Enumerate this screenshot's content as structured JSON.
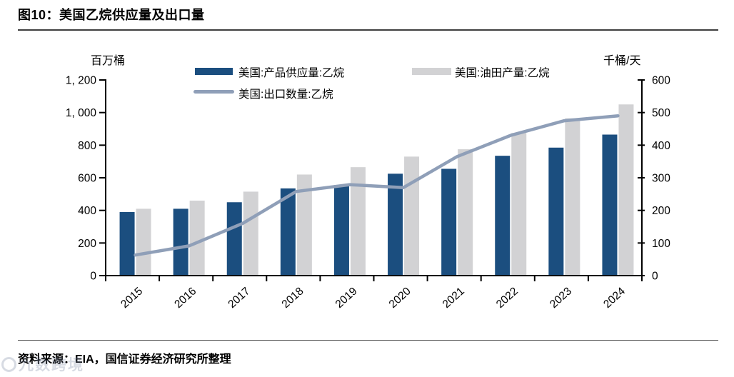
{
  "header": {
    "title": "图10：美国乙烷供应量及出口量"
  },
  "axis_units": {
    "left": "百万桶",
    "right": "千桶/天"
  },
  "footer": {
    "source": "资料来源：EIA，国信证券经济研究所整理"
  },
  "watermark": {
    "text": "九数跨境"
  },
  "colors": {
    "bar_supply": "#1b4e7f",
    "bar_field": "#d2d2d4",
    "line_export": "#8f9fb8",
    "axis": "#000000"
  },
  "chart_data": {
    "type": "bar",
    "subtype": "grouped-bars-with-line",
    "title": "美国乙烷供应量及出口量",
    "categories": [
      "2015",
      "2016",
      "2017",
      "2018",
      "2019",
      "2020",
      "2021",
      "2022",
      "2023",
      "2024"
    ],
    "series": [
      {
        "name": "美国:产品供应量:乙烷",
        "type": "bar",
        "axis": "left",
        "color": "#1b4e7f",
        "values": [
          390,
          410,
          450,
          535,
          555,
          625,
          655,
          735,
          785,
          865
        ]
      },
      {
        "name": "美国:油田产量:乙烷",
        "type": "bar",
        "axis": "left",
        "color": "#d2d2d4",
        "values": [
          410,
          460,
          515,
          620,
          665,
          730,
          775,
          875,
          965,
          1050
        ]
      },
      {
        "name": "美国:出口数量:乙烷",
        "type": "line",
        "axis": "right",
        "color": "#8f9fb8",
        "values": [
          63,
          91,
          160,
          258,
          279,
          270,
          365,
          430,
          475,
          490
        ]
      }
    ],
    "left_axis": {
      "label": "百万桶",
      "min": 0,
      "max": 1200,
      "tick_step": 200,
      "tick_labels": [
        "0",
        "200",
        "400",
        "600",
        "800",
        "1, 000",
        "1, 200"
      ]
    },
    "right_axis": {
      "label": "千桶/天",
      "min": 0,
      "max": 600,
      "tick_step": 100,
      "tick_labels": [
        "0",
        "100",
        "200",
        "300",
        "400",
        "500",
        "600"
      ]
    },
    "legend_position": "top-center",
    "grid": false
  }
}
